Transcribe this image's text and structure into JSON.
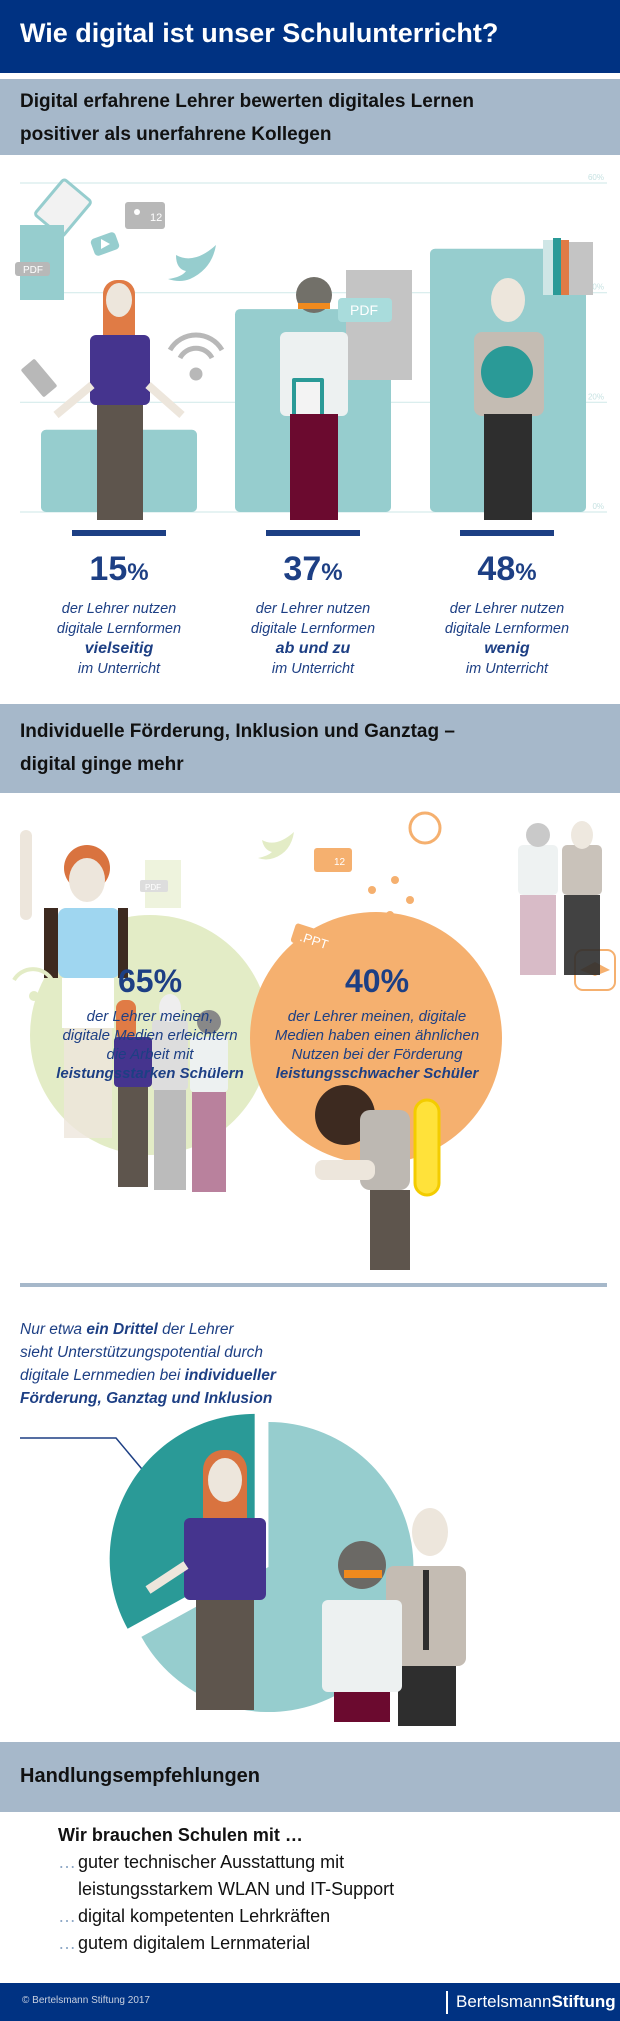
{
  "header": {
    "title": "Wie digital ist unser Schulunterricht?"
  },
  "section1": {
    "title_line1": "Digital erfahrene Lehrer bewerten digitales Lernen",
    "title_line2": "positiver als unerfahrene Kollegen"
  },
  "chart_data": {
    "type": "bar",
    "categories": [
      "vielseitig",
      "ab und zu",
      "wenig"
    ],
    "values": [
      15,
      37,
      48
    ],
    "ylim": [
      0,
      60
    ],
    "yticks": [
      "0%",
      "20%",
      "40%",
      "60%"
    ],
    "grid": true,
    "bar_color": "#96cdce"
  },
  "stats": [
    {
      "value": "15",
      "unit": "%",
      "line1": "der Lehrer nutzen",
      "line2": "digitale Lernformen",
      "emphasis": "vielseitig",
      "line3": "im Unterricht"
    },
    {
      "value": "37",
      "unit": "%",
      "line1": "der Lehrer nutzen",
      "line2": "digitale Lernformen",
      "emphasis": "ab und zu",
      "line3": "im Unterricht"
    },
    {
      "value": "48",
      "unit": "%",
      "line1": "der Lehrer nutzen",
      "line2": "digitale Lernformen",
      "emphasis": "wenig",
      "line3": "im Unterricht"
    }
  ],
  "illustration_labels": {
    "pdf": "PDF",
    "count": "12",
    "ppt": ".PPT"
  },
  "section2": {
    "title_line1": "Individuelle Förderung, Inklusion und Ganztag –",
    "title_line2": "digital ginge mehr"
  },
  "circles": [
    {
      "value": "65",
      "unit": "%",
      "line1": "der Lehrer meinen,",
      "line2": "digitale Medien erleichtern",
      "line3": "die Arbeit mit",
      "emphasis": "leistungsstarken Schülern",
      "color": "#e3ecc6"
    },
    {
      "value": "40",
      "unit": "%",
      "line1": "der Lehrer meinen, digitale",
      "line2": "Medien haben einen ähnlichen",
      "line3": "Nutzen bei der Förderung",
      "emphasis": "leistungsschwacher Schüler",
      "color": "#f5b06f"
    }
  ],
  "third": {
    "t1": "Nur etwa ",
    "b1": "ein Drittel",
    "t2": " der Lehrer",
    "line2": "sieht Unterstützungspotential durch",
    "t3": "digitale Lernmedien bei ",
    "b2": "individueller",
    "b3": "Förderung, Ganztag und Inklusion",
    "share": 0.33,
    "colors": [
      "#2a9a97",
      "#96cdce"
    ]
  },
  "section3": {
    "title": "Handlungsempfehlungen"
  },
  "recommendations": {
    "intro": "Wir brauchen Schulen mit …",
    "dots": "…",
    "items": [
      "guter technischer Ausstattung mit",
      "leistungsstarkem WLAN und IT-Support",
      "digital kompetenten Lehrkräften",
      "gutem digitalem Lernmaterial"
    ]
  },
  "footer": {
    "copyright": "© Bertelsmann Stiftung 2017",
    "logo_light": "Bertelsmann",
    "logo_bold": "Stiftung"
  }
}
